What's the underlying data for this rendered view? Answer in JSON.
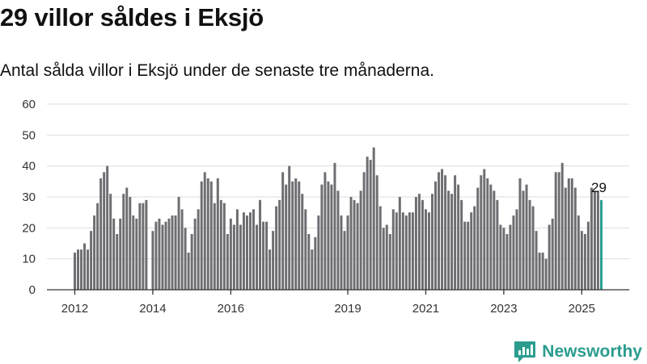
{
  "header": {
    "title": "29 villor såldes i Eksjö",
    "subtitle": "Antal sålda villor i Eksjö under de senaste tre månaderna."
  },
  "brand": {
    "name": "Newsworthy",
    "logo_icon": "chart-bubble-icon"
  },
  "colors": {
    "bar": "#6d6d72",
    "highlight": "#2a9d8f",
    "grid": "#dddddd",
    "axis": "#333333",
    "text": "#111111"
  },
  "chart_data": {
    "type": "bar",
    "title": "29 villor såldes i Eksjö",
    "subtitle": "Antal sålda villor i Eksjö under de senaste tre månaderna.",
    "xlabel": "",
    "ylabel": "",
    "ylim": [
      0,
      60
    ],
    "y_ticks": [
      0,
      10,
      20,
      30,
      40,
      50,
      60
    ],
    "x_tick_labels": [
      "2012",
      "2014",
      "2016",
      "2019",
      "2021",
      "2023",
      "2025"
    ],
    "grid": true,
    "legend": "none",
    "x_start": "2012-01",
    "x_end": "2025-07",
    "highlight_label": "29",
    "series": [
      {
        "values": [
          12,
          13,
          13,
          15,
          13,
          19,
          24,
          28,
          36,
          38,
          40,
          31,
          23,
          18,
          23,
          31,
          33,
          30,
          24,
          23,
          28,
          28,
          29,
          0,
          19,
          22,
          23,
          21,
          22,
          23,
          24,
          24,
          30,
          26,
          20,
          12,
          18,
          23,
          26,
          35,
          38,
          36,
          35,
          28,
          36,
          29,
          28,
          18,
          23,
          21,
          26,
          21,
          25,
          24,
          25,
          26,
          21,
          29,
          22,
          22,
          13,
          19,
          27,
          29,
          38,
          34,
          40,
          35,
          36,
          35,
          31,
          26,
          18,
          13,
          17,
          24,
          34,
          38,
          35,
          34,
          41,
          32,
          24,
          19,
          24,
          30,
          29,
          28,
          32,
          38,
          43,
          42,
          46,
          37,
          27,
          20,
          21,
          18,
          26,
          25,
          30,
          25,
          24,
          25,
          25,
          30,
          31,
          29,
          26,
          25,
          31,
          35,
          38,
          39,
          37,
          32,
          31,
          37,
          34,
          29,
          22,
          22,
          25,
          27,
          33,
          37,
          39,
          36,
          34,
          32,
          29,
          21,
          20,
          18,
          21,
          24,
          26,
          36,
          32,
          34,
          29,
          27,
          19,
          12,
          12,
          10,
          21,
          23,
          38,
          38,
          41,
          33,
          36,
          36,
          33,
          24,
          19,
          18,
          22,
          33,
          32,
          32,
          29
        ]
      }
    ]
  }
}
